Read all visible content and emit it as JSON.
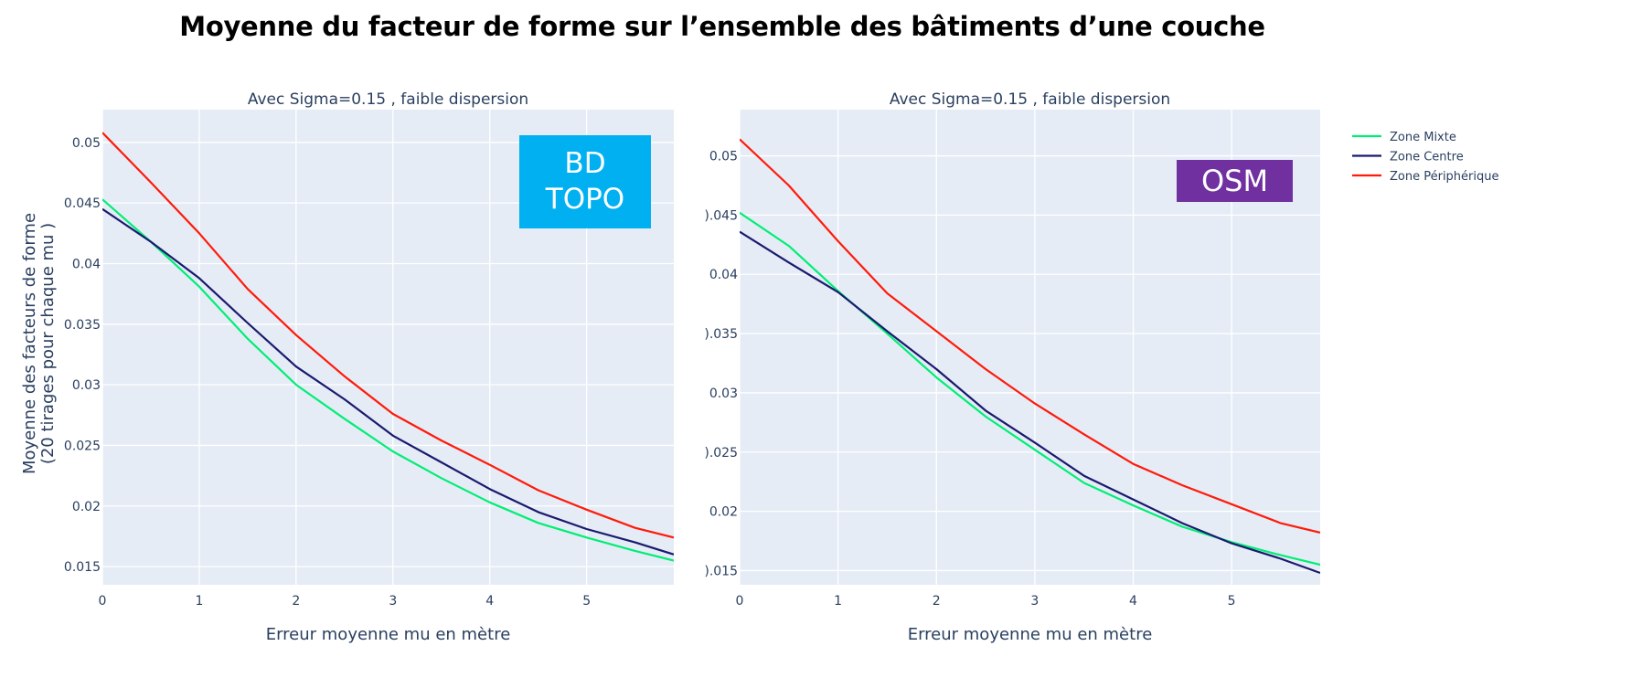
{
  "title": "Moyenne du facteur de forme sur l’ensemble des bâtiments d’une couche",
  "badges": {
    "left": "BD\nTOPO",
    "right": "OSM"
  },
  "colors": {
    "mixte": "#00ee76",
    "centre": "#1a1a6e",
    "peripherique": "#ff1a0a",
    "badge_left": "#00b0f0",
    "badge_right": "#7030a0"
  },
  "legend": [
    "Zone Mixte",
    "Zone Centre",
    "Zone Périphérique"
  ],
  "chart_data": [
    {
      "type": "line",
      "title": "Avec Sigma=0.15 , faible dispersion",
      "xlabel": "Erreur moyenne mu en mètre",
      "ylabel": "Moyenne des facteurs de forme",
      "ylabel2": "(20 tirages pour chaque mu )",
      "xlim": [
        0,
        5.9
      ],
      "ylim": [
        0.0135,
        0.0527
      ],
      "x_ticks": [
        0,
        1,
        2,
        3,
        4,
        5
      ],
      "y_ticks": [
        0.015,
        0.02,
        0.025,
        0.03,
        0.035,
        0.04,
        0.045,
        0.05
      ],
      "y_tick_labels": [
        "0.015",
        "0.02",
        "0.025",
        "0.03",
        "0.035",
        "0.04",
        "0.045",
        "0.05"
      ],
      "x": [
        0,
        0.5,
        1,
        1.5,
        2,
        2.5,
        3,
        3.5,
        4,
        4.5,
        5,
        5.5,
        5.9
      ],
      "series": [
        {
          "name": "Zone Mixte",
          "values": [
            0.0453,
            0.0418,
            0.0381,
            0.0338,
            0.03,
            0.0272,
            0.0245,
            0.0223,
            0.0203,
            0.0186,
            0.0174,
            0.0163,
            0.0155
          ]
        },
        {
          "name": "Zone Centre",
          "values": [
            0.0445,
            0.0418,
            0.0388,
            0.0351,
            0.0315,
            0.0288,
            0.0258,
            0.0236,
            0.0214,
            0.0195,
            0.0181,
            0.017,
            0.016
          ]
        },
        {
          "name": "Zone Périphérique",
          "values": [
            0.0508,
            0.0467,
            0.0425,
            0.0379,
            0.0341,
            0.0307,
            0.0276,
            0.0254,
            0.0234,
            0.0213,
            0.0197,
            0.0182,
            0.0174
          ]
        }
      ]
    },
    {
      "type": "line",
      "title": "Avec Sigma=0.15 , faible dispersion",
      "xlabel": "Erreur moyenne mu en mètre",
      "xlim": [
        0,
        5.9
      ],
      "ylim": [
        0.0138,
        0.0539
      ],
      "x_ticks": [
        0,
        1,
        2,
        3,
        4,
        5
      ],
      "y_ticks": [
        0.015,
        0.02,
        0.025,
        0.03,
        0.035,
        0.04,
        0.045,
        0.05
      ],
      "y_tick_labels": [
        ").015",
        "0.02",
        ").025",
        "0.03",
        ").035",
        "0.04",
        ").045",
        "0.05"
      ],
      "x": [
        0,
        0.5,
        1,
        1.5,
        2,
        2.5,
        3,
        3.5,
        4,
        4.5,
        5,
        5.5,
        5.9
      ],
      "series": [
        {
          "name": "Zone Mixte",
          "values": [
            0.0452,
            0.0424,
            0.0386,
            0.035,
            0.0313,
            0.028,
            0.0252,
            0.0224,
            0.0205,
            0.0187,
            0.0174,
            0.0163,
            0.0155
          ]
        },
        {
          "name": "Zone Centre",
          "values": [
            0.0436,
            0.041,
            0.0385,
            0.0352,
            0.032,
            0.0285,
            0.0258,
            0.023,
            0.021,
            0.019,
            0.0173,
            0.016,
            0.0148
          ]
        },
        {
          "name": "Zone Périphérique",
          "values": [
            0.0514,
            0.0475,
            0.0428,
            0.0384,
            0.0352,
            0.032,
            0.0291,
            0.0265,
            0.024,
            0.0222,
            0.0206,
            0.019,
            0.0182
          ]
        }
      ]
    }
  ]
}
